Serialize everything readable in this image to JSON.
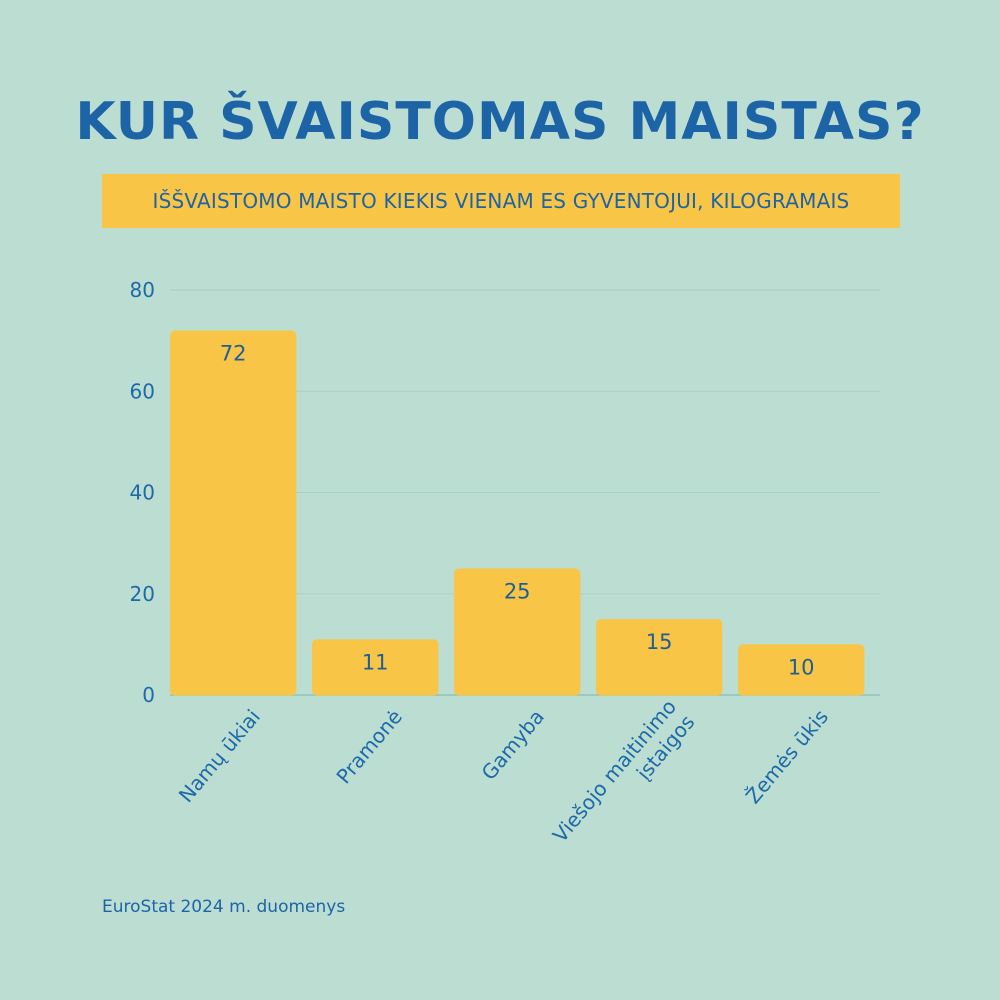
{
  "chart_data": {
    "type": "bar",
    "title": "KUR ŠVAISTOMAS MAISTAS?",
    "subtitle": "IŠŠVAISTOMO MAISTO KIEKIS VIENAM ES GYVENTOJUI, KILOGRAMAIS",
    "categories": [
      [
        "Namų ūkiai"
      ],
      [
        "Pramonė"
      ],
      [
        "Gamyba"
      ],
      [
        "Viešojo maitinimo",
        "įstaigos"
      ],
      [
        "Žemės ūkis"
      ]
    ],
    "values": [
      72,
      11,
      25,
      15,
      10
    ],
    "ylim": [
      0,
      80
    ],
    "yticks": [
      0,
      20,
      40,
      60,
      80
    ],
    "grid": true,
    "colors": {
      "bar": "#f9c546",
      "text": "#1d6aa8",
      "grid": "#a9d0c4",
      "background": "#bcddd2"
    },
    "source": "EuroStat 2024 m. duomenys"
  }
}
